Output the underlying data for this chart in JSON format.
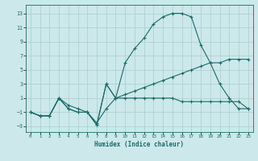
{
  "xlabel": "Humidex (Indice chaleur)",
  "bg_color": "#cce8ea",
  "grid_color": "#aaccce",
  "line_color": "#1a6b6b",
  "xlim": [
    -0.5,
    23.5
  ],
  "ylim": [
    -3.8,
    14.2
  ],
  "x_ticks": [
    0,
    1,
    2,
    3,
    4,
    5,
    6,
    7,
    8,
    9,
    10,
    11,
    12,
    13,
    14,
    15,
    16,
    17,
    18,
    19,
    20,
    21,
    22,
    23
  ],
  "y_ticks": [
    -3,
    -1,
    1,
    3,
    5,
    7,
    9,
    11,
    13
  ],
  "line1_x": [
    0,
    1,
    2,
    3,
    4,
    5,
    6,
    7,
    8,
    9,
    10,
    11,
    12,
    13,
    14,
    15,
    16,
    17,
    18,
    19,
    20,
    21,
    22,
    23
  ],
  "line1_y": [
    -1,
    -1.5,
    -1.5,
    1,
    0,
    -0.5,
    -1,
    -2.5,
    -0.5,
    1,
    1,
    1,
    1,
    1,
    1,
    1,
    0.5,
    0.5,
    0.5,
    0.5,
    0.5,
    0.5,
    0.5,
    -0.5
  ],
  "line2_x": [
    0,
    1,
    2,
    3,
    4,
    5,
    6,
    7,
    8,
    9,
    10,
    11,
    12,
    13,
    14,
    15,
    16,
    17,
    18,
    19,
    20,
    21,
    22,
    23
  ],
  "line2_y": [
    -1,
    -1.5,
    -1.5,
    1,
    -0.5,
    -1,
    -1,
    -2.8,
    3,
    1,
    1.5,
    2,
    2.5,
    3,
    3.5,
    4,
    4.5,
    5,
    5.5,
    6,
    6,
    6.5,
    6.5,
    6.5
  ],
  "line3_x": [
    0,
    1,
    2,
    3,
    4,
    5,
    6,
    7,
    8,
    9,
    10,
    11,
    12,
    13,
    14,
    15,
    16,
    17,
    18,
    19,
    20,
    21,
    22,
    23
  ],
  "line3_y": [
    -1,
    -1.5,
    -1.5,
    1,
    -0.5,
    -1,
    -1,
    -2.8,
    3,
    1,
    6,
    8,
    9.5,
    11.5,
    12.5,
    13,
    13,
    12.5,
    8.5,
    6,
    3,
    1,
    -0.5,
    -0.5
  ]
}
